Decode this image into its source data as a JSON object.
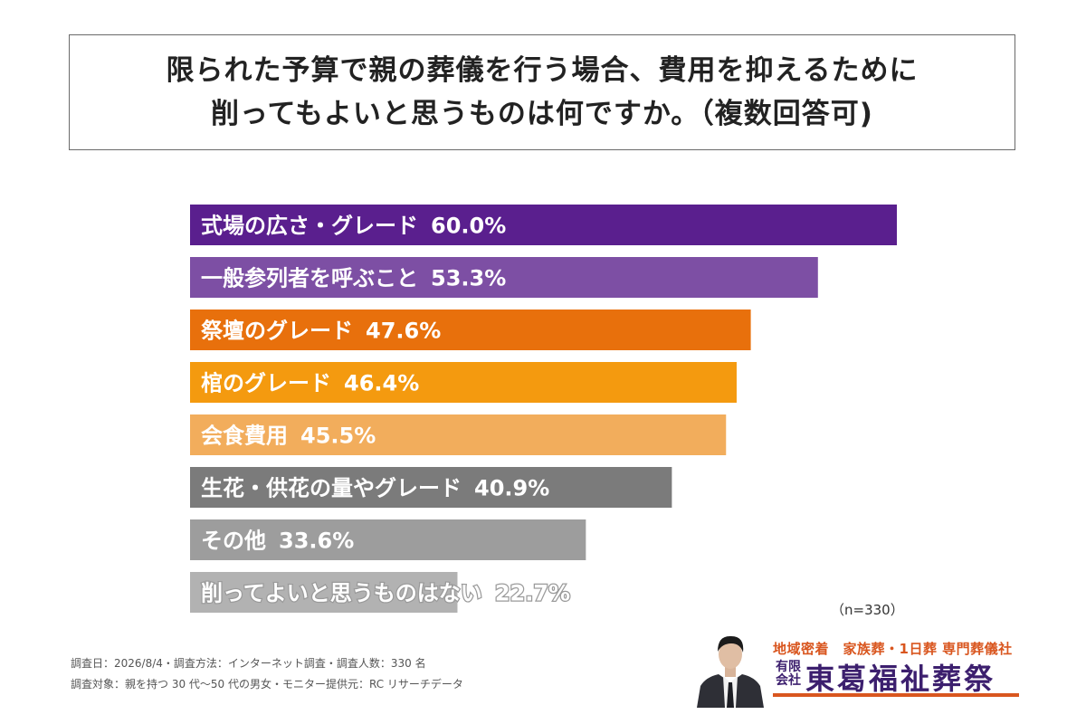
{
  "title": {
    "line1": "限られた予算で親の葬儀を行う場合、費用を抑えるために",
    "line2": "削ってもよいと思うものは何ですか。（複数回答可)"
  },
  "chart_data": {
    "type": "bar",
    "orientation": "horizontal",
    "categories": [
      "式場の広さ・グレード",
      "一般参列者を呼ぶこと",
      "祭壇のグレード",
      "棺のグレード",
      "会食費用",
      "生花・供花の量やグレード",
      "その他",
      "削ってよいと思うものはない"
    ],
    "values": [
      60.0,
      53.3,
      47.6,
      46.4,
      45.5,
      40.9,
      33.6,
      22.7
    ],
    "value_labels": [
      "60.0%",
      "53.3%",
      "47.6%",
      "46.4%",
      "45.5%",
      "40.9%",
      "33.6%",
      "22.7%"
    ],
    "colors": [
      "#5a1f8e",
      "#7d4fa4",
      "#e8700c",
      "#f49a0f",
      "#f2ad5c",
      "#7b7b7b",
      "#9d9d9d",
      "#b2b2b2"
    ],
    "label_color": "#ffffff",
    "xlim": [
      0,
      60
    ],
    "grid": false
  },
  "sample_size": "（n=330）",
  "footnotes": {
    "line1": "調査日：2026/8/4・調査方法：インターネット調査・調査人数：330 名",
    "line2": "調査対象：親を持つ 30 代〜50 代の男女・モニター提供元：RC リサーチデータ"
  },
  "company": {
    "tagline": "地域密着　家族葬・1日葬 専門葬儀社",
    "kind": "有限会社",
    "name": "東葛福祉葬祭",
    "accent": "#d9561f",
    "brand_color": "#3c1f6e",
    "portrait_icon": "businessman-portrait-icon"
  }
}
